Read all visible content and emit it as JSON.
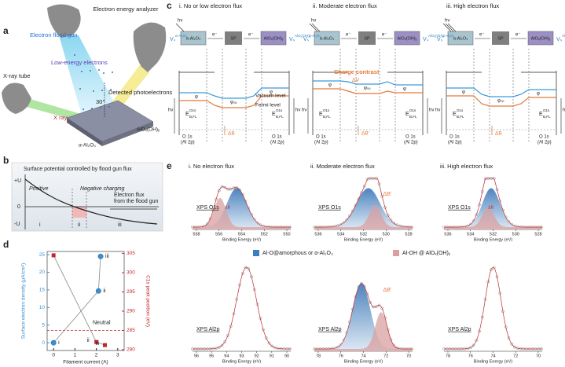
{
  "panel_a": {
    "letter": "a",
    "flood_gun": "Electron flood gun",
    "analyzer": "Electron energy analyzer",
    "low_energy": "Low-energy electrons",
    "xray_tube": "X-ray tube",
    "photoelectrons": "Detected photoelectrons",
    "angle": "30°",
    "xray": "X ray",
    "top_layer": "AlOₓ(OH)ᵧ",
    "substrate": "α-Al₂O₃"
  },
  "panel_b": {
    "letter": "b",
    "title": "Surface potential controlled by flood gun flux",
    "yticks": [
      "+U",
      "0",
      "-U"
    ],
    "positive": "Positive",
    "negative": "Negative charging",
    "flux": [
      "Electron flux",
      "from the flood gun"
    ],
    "regions": [
      "i",
      "ii",
      "iii"
    ]
  },
  "panel_c": {
    "letter": "c",
    "columns": [
      {
        "title": "i. No or low electron flux"
      },
      {
        "title": "ii. Moderate electron flux"
      },
      {
        "title": "iii. High electron flux"
      }
    ],
    "hv": "hν",
    "e": "e⁻",
    "sp": "SP",
    "vs": "Vₛ",
    "vacuum": "Vacuum level",
    "fermi": "Fermi level",
    "charge_contrast": "Charge contrast",
    "dv": "ΔV",
    "db": "ΔB",
    "db_prime": "ΔB'",
    "phi_sp": "φₛₚ",
    "phi": "φ",
    "e_b": "E",
    "e_sub": "B,FL",
    "e_sup": "O1s",
    "core": "O 1s",
    "core_alt": "(Al 2p)"
  },
  "panel_d": {
    "letter": "d",
    "y_label": "Surface electron density (μA/cm²)",
    "y2_label": "C1s peak position (eV)",
    "x_label": "Filament current (A)",
    "xlim": [
      -0.3,
      3.3
    ],
    "ylim": [
      -2.2,
      25.9
    ],
    "y2lim": [
      279.8,
      305.5
    ],
    "xticks": [
      0,
      1,
      2,
      3
    ],
    "yticks": [
      0,
      5,
      10,
      15,
      20,
      25
    ],
    "y2ticks": [
      280,
      285,
      290,
      295,
      300,
      305
    ],
    "neutral": {
      "label": "Neutral",
      "value": 285
    },
    "series": [
      {
        "color": "#3a8fd0",
        "x": [
          0,
          2.1,
          2.2
        ],
        "values": [
          0,
          14.7,
          24.5
        ],
        "labels": [
          "i",
          "ii",
          "iii"
        ]
      },
      {
        "color": "#c0282d",
        "axis": "y2",
        "x": [
          0,
          2,
          2.4
        ],
        "values": [
          304.5,
          282,
          281.2
        ],
        "labels": [
          null,
          "ii",
          "iii"
        ]
      }
    ]
  },
  "panel_e": {
    "letter": "e",
    "columns": [
      {
        "title": "i. No electron flux"
      },
      {
        "title": "ii. Moderate electron flux"
      },
      {
        "title": "iii. High electron flux"
      }
    ],
    "x_label": "Binding Energy (eV)",
    "db": "ΔB",
    "db_prime": "ΔB'",
    "legend": [
      "Al-O@amorphous or α-Al₂O₃",
      "Al-OH @ AlOₓ(OH)ᵧ"
    ],
    "rows": [
      {
        "label": "XPS O1s",
        "xticks": [
          [
            558,
            556,
            554,
            552,
            550
          ],
          [
            536,
            534,
            532,
            530,
            528
          ],
          [
            536,
            534,
            532,
            530,
            528
          ]
        ]
      },
      {
        "label": "XPS Al2p",
        "xticks": [
          [
            96,
            95,
            94,
            93,
            92,
            91,
            90
          ],
          [
            78,
            76,
            74,
            72,
            70
          ],
          [
            78,
            76,
            74,
            72,
            70
          ]
        ]
      }
    ]
  }
}
